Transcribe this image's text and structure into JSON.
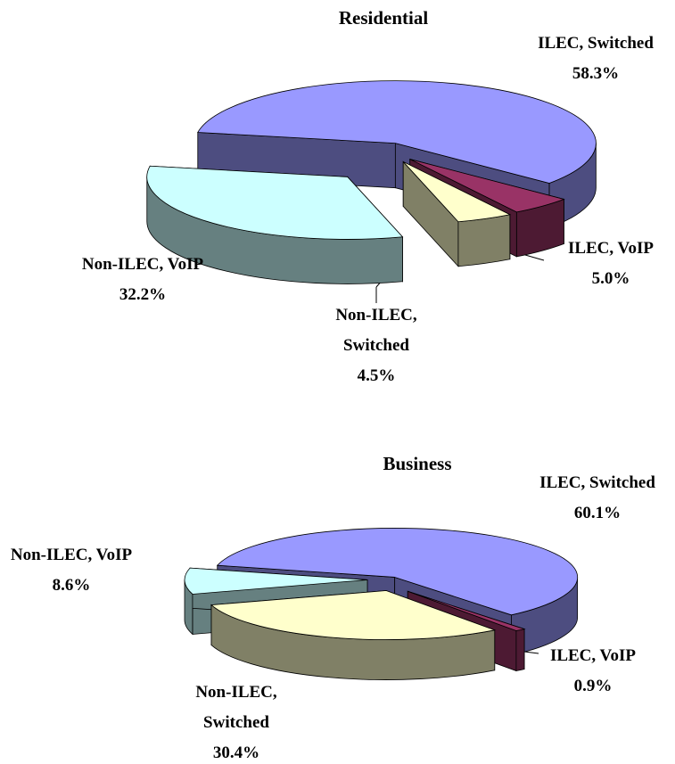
{
  "chart_data": [
    {
      "type": "pie",
      "title": "Residential",
      "categories": [
        "ILEC, Switched",
        "ILEC, VoIP",
        "Non-ILEC, Switched",
        "Non-ILEC, VoIP"
      ],
      "values": [
        58.3,
        5.0,
        4.5,
        32.2
      ],
      "value_labels": [
        "58.3%",
        "5.0%",
        "4.5%",
        "32.2%"
      ],
      "colors": [
        "#9999ff",
        "#993366",
        "#ffffcc",
        "#ccffff"
      ]
    },
    {
      "type": "pie",
      "title": "Business",
      "categories": [
        "ILEC, Switched",
        "ILEC, VoIP",
        "Non-ILEC, Switched",
        "Non-ILEC, VoIP"
      ],
      "values": [
        60.1,
        0.9,
        30.4,
        8.6
      ],
      "value_labels": [
        "60.1%",
        "0.9%",
        "30.4%",
        "8.6%"
      ],
      "colors": [
        "#9999ff",
        "#993366",
        "#ffffcc",
        "#ccffff"
      ]
    }
  ]
}
